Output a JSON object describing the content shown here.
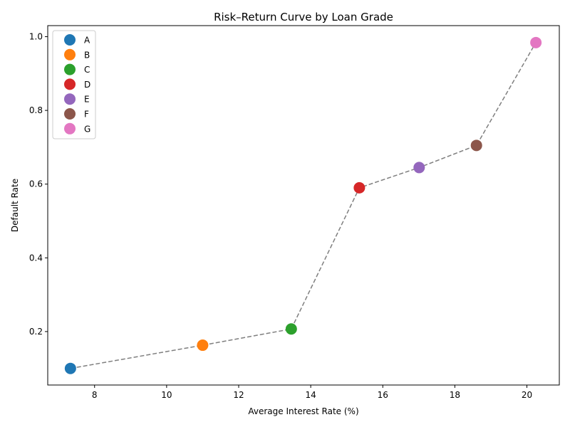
{
  "chart_data": {
    "type": "scatter",
    "title": "Risk–Return Curve by Loan Grade",
    "xlabel": "Average Interest Rate (%)",
    "ylabel": "Default Rate",
    "xlim": [
      6.7,
      20.9
    ],
    "ylim": [
      0.055,
      1.03
    ],
    "xticks": [
      8,
      10,
      12,
      14,
      16,
      18,
      20
    ],
    "yticks": [
      0.2,
      0.4,
      0.6,
      0.8,
      1.0
    ],
    "ytick_labels": [
      "0.2",
      "0.4",
      "0.6",
      "0.8",
      "1.0"
    ],
    "grid": false,
    "legend_position": "top-left",
    "connecting_line": {
      "style": "dashed",
      "color": "#7f7f7f"
    },
    "series": [
      {
        "name": "A",
        "x": 7.33,
        "y": 0.1,
        "color": "#1f77b4"
      },
      {
        "name": "B",
        "x": 11.0,
        "y": 0.163,
        "color": "#ff7f0e"
      },
      {
        "name": "C",
        "x": 13.46,
        "y": 0.207,
        "color": "#2ca02c"
      },
      {
        "name": "D",
        "x": 15.35,
        "y": 0.59,
        "color": "#d62728"
      },
      {
        "name": "E",
        "x": 17.01,
        "y": 0.645,
        "color": "#9467bd"
      },
      {
        "name": "F",
        "x": 18.6,
        "y": 0.705,
        "color": "#8c564b"
      },
      {
        "name": "G",
        "x": 20.25,
        "y": 0.984,
        "color": "#e377c2"
      }
    ]
  }
}
